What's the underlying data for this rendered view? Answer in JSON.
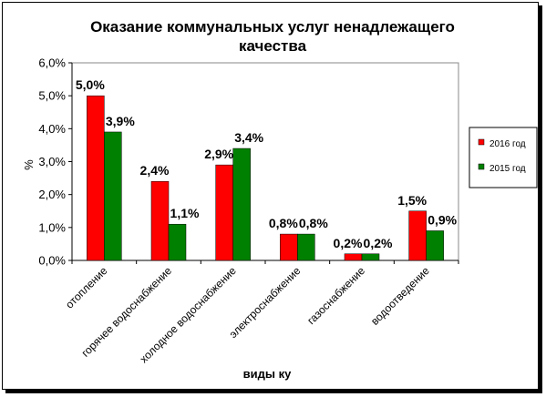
{
  "chart_data": {
    "type": "bar",
    "title_line1": "Оказание коммунальных услуг ненадлежащего",
    "title_line2": "качества",
    "xlabel": "виды ку",
    "ylabel": "%",
    "ylim": [
      0,
      6
    ],
    "y_ticks": [
      "0,0%",
      "1,0%",
      "2,0%",
      "3,0%",
      "4,0%",
      "5,0%",
      "6,0%"
    ],
    "grid": false,
    "legend_position": "right",
    "categories": [
      "отопление",
      "горячее водоснабжение",
      "холодное водоснабжение",
      "электроснабжение",
      "газоснабжение",
      "водоотведение"
    ],
    "series": [
      {
        "name": "2016 год",
        "color": "#ff0000",
        "values": [
          5.0,
          2.4,
          2.9,
          0.8,
          0.2,
          1.5
        ],
        "labels": [
          "5,0%",
          "2,4%",
          "2,9%",
          "0,8%",
          "0,2%",
          "1,5%"
        ]
      },
      {
        "name": "2015 год",
        "color": "#008000",
        "values": [
          3.9,
          1.1,
          3.4,
          0.8,
          0.2,
          0.9
        ],
        "labels": [
          "3,9%",
          "1,1%",
          "3,4%",
          "0,8%",
          "0,2%",
          "0,9%"
        ]
      }
    ]
  }
}
